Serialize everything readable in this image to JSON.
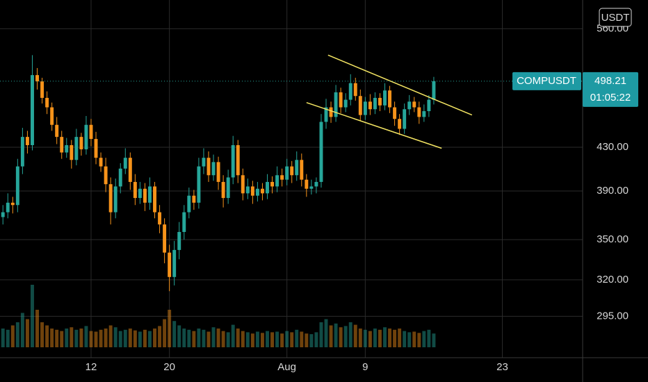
{
  "chart_data": {
    "type": "candlestick",
    "symbol": "COMPUSDT",
    "currency": "USDT",
    "last_price": 498.21,
    "countdown": "01:05:22",
    "up_color": "#26a69a",
    "down_color": "#f7931a",
    "line_color": "#f5e663",
    "log_scale": true,
    "grid": true,
    "x": [
      3,
      3.5,
      4,
      4.5,
      5,
      5.5,
      6,
      6.5,
      7,
      7.5,
      8,
      8.5,
      9,
      9.5,
      10,
      10.5,
      11,
      11.5,
      12,
      12.5,
      13,
      13.5,
      14,
      14.5,
      15,
      15.5,
      16,
      16.5,
      17,
      17.5,
      18,
      18.5,
      19,
      19.5,
      20,
      20.5,
      21,
      21.5,
      22,
      22.5,
      23,
      23.5,
      24,
      24.5,
      25,
      25.5,
      26,
      26.5,
      27,
      27.5,
      28,
      28.5,
      29,
      29.5,
      30,
      30.5,
      31,
      31.5,
      32,
      32.5,
      33,
      33.5,
      34,
      34.5,
      35,
      35.5,
      36,
      36.5,
      37,
      37.5,
      38,
      38.5,
      39,
      39.5,
      40,
      40.5,
      41,
      41.5,
      42,
      42.5,
      43,
      43.5,
      44,
      44.5,
      45,
      45.5,
      46,
      46.5,
      47
    ],
    "open": [
      368,
      372,
      380,
      378,
      412,
      440,
      432,
      505,
      498,
      480,
      470,
      452,
      440,
      425,
      432,
      418,
      440,
      428,
      452,
      438,
      420,
      412,
      396,
      372,
      394,
      410,
      420,
      398,
      384,
      392,
      380,
      394,
      372,
      362,
      340,
      322,
      342,
      356,
      372,
      386,
      380,
      412,
      420,
      404,
      416,
      398,
      384,
      402,
      432,
      404,
      388,
      394,
      386,
      392,
      388,
      398,
      394,
      404,
      400,
      412,
      404,
      418,
      400,
      392,
      394,
      398,
      455,
      470,
      460,
      486,
      470,
      478,
      496,
      482,
      462,
      476,
      468,
      480,
      472,
      488,
      470,
      458,
      448,
      468,
      476,
      470,
      460,
      466,
      478
    ],
    "high": [
      378,
      388,
      385,
      419,
      449,
      446,
      528,
      513,
      502,
      487,
      475,
      460,
      446,
      439,
      437,
      448,
      444,
      461,
      458,
      445,
      425,
      420,
      402,
      401,
      415,
      429,
      425,
      405,
      398,
      397,
      402,
      398,
      378,
      367,
      346,
      349,
      364,
      378,
      393,
      391,
      420,
      429,
      426,
      423,
      421,
      404,
      409,
      441,
      437,
      410,
      401,
      399,
      398,
      397,
      405,
      403,
      412,
      410,
      419,
      417,
      426,
      424,
      405,
      400,
      402,
      463,
      479,
      476,
      494,
      491,
      485,
      506,
      502,
      489,
      481,
      484,
      486,
      485,
      496,
      493,
      476,
      463,
      474,
      483,
      481,
      476,
      473,
      483,
      503
    ],
    "low": [
      362,
      367,
      371,
      372,
      405,
      424,
      427,
      489,
      474,
      463,
      446,
      433,
      419,
      420,
      410,
      413,
      422,
      423,
      431,
      414,
      407,
      389,
      362,
      367,
      388,
      405,
      391,
      378,
      379,
      373,
      374,
      367,
      355,
      332,
      312,
      316,
      335,
      350,
      367,
      374,
      375,
      405,
      398,
      399,
      391,
      376,
      379,
      396,
      397,
      382,
      383,
      379,
      381,
      382,
      383,
      388,
      389,
      394,
      395,
      397,
      399,
      394,
      385,
      387,
      388,
      393,
      448,
      454,
      455,
      464,
      465,
      472,
      477,
      456,
      457,
      462,
      463,
      466,
      467,
      464,
      451,
      442,
      443,
      462,
      465,
      453,
      455,
      460,
      473
    ],
    "close": [
      372,
      380,
      378,
      412,
      440,
      432,
      505,
      498,
      480,
      470,
      452,
      440,
      425,
      432,
      418,
      440,
      428,
      452,
      438,
      420,
      412,
      396,
      372,
      394,
      410,
      420,
      398,
      384,
      392,
      380,
      394,
      372,
      362,
      340,
      322,
      342,
      356,
      372,
      386,
      380,
      412,
      420,
      404,
      416,
      398,
      384,
      402,
      432,
      404,
      388,
      394,
      386,
      392,
      388,
      398,
      394,
      404,
      400,
      412,
      404,
      418,
      400,
      392,
      394,
      398,
      455,
      470,
      460,
      486,
      470,
      478,
      496,
      482,
      462,
      476,
      468,
      480,
      472,
      488,
      470,
      458,
      448,
      468,
      476,
      470,
      460,
      466,
      478,
      498.21
    ],
    "volume": [
      30,
      28,
      35,
      40,
      55,
      45,
      100,
      60,
      40,
      35,
      30,
      28,
      26,
      30,
      32,
      28,
      30,
      34,
      26,
      25,
      28,
      30,
      35,
      32,
      26,
      28,
      30,
      27,
      25,
      28,
      26,
      30,
      34,
      45,
      60,
      42,
      35,
      30,
      28,
      26,
      30,
      28,
      25,
      32,
      30,
      26,
      24,
      36,
      30,
      26,
      24,
      22,
      25,
      23,
      26,
      24,
      25,
      22,
      26,
      24,
      28,
      25,
      22,
      21,
      24,
      40,
      45,
      35,
      38,
      32,
      34,
      40,
      36,
      30,
      28,
      26,
      30,
      28,
      32,
      30,
      28,
      30,
      26,
      24,
      25,
      23,
      26,
      28,
      22
    ],
    "trendlines": [
      {
        "x": [
          36.2,
          50.9
        ],
        "y": [
          528,
          462
        ]
      },
      {
        "x": [
          34,
          47.8
        ],
        "y": [
          475,
          429
        ]
      }
    ],
    "xlim": [
      2.7,
      62.2
    ],
    "ylim": [
      269,
      597
    ],
    "xticks": [
      12,
      20,
      {
        "value": 32,
        "label": "Aug"
      },
      {
        "value": 40,
        "label": "9"
      },
      {
        "value": 54,
        "label": "23"
      }
    ],
    "yticks": [
      {
        "value": 295,
        "label": "295.00"
      },
      {
        "value": 320,
        "label": "320.00"
      },
      {
        "value": 350,
        "label": "350.00"
      },
      {
        "value": 390,
        "label": "390.00"
      },
      {
        "value": 430,
        "label": "430.00"
      },
      {
        "value": 560,
        "label": "560.00"
      }
    ]
  }
}
